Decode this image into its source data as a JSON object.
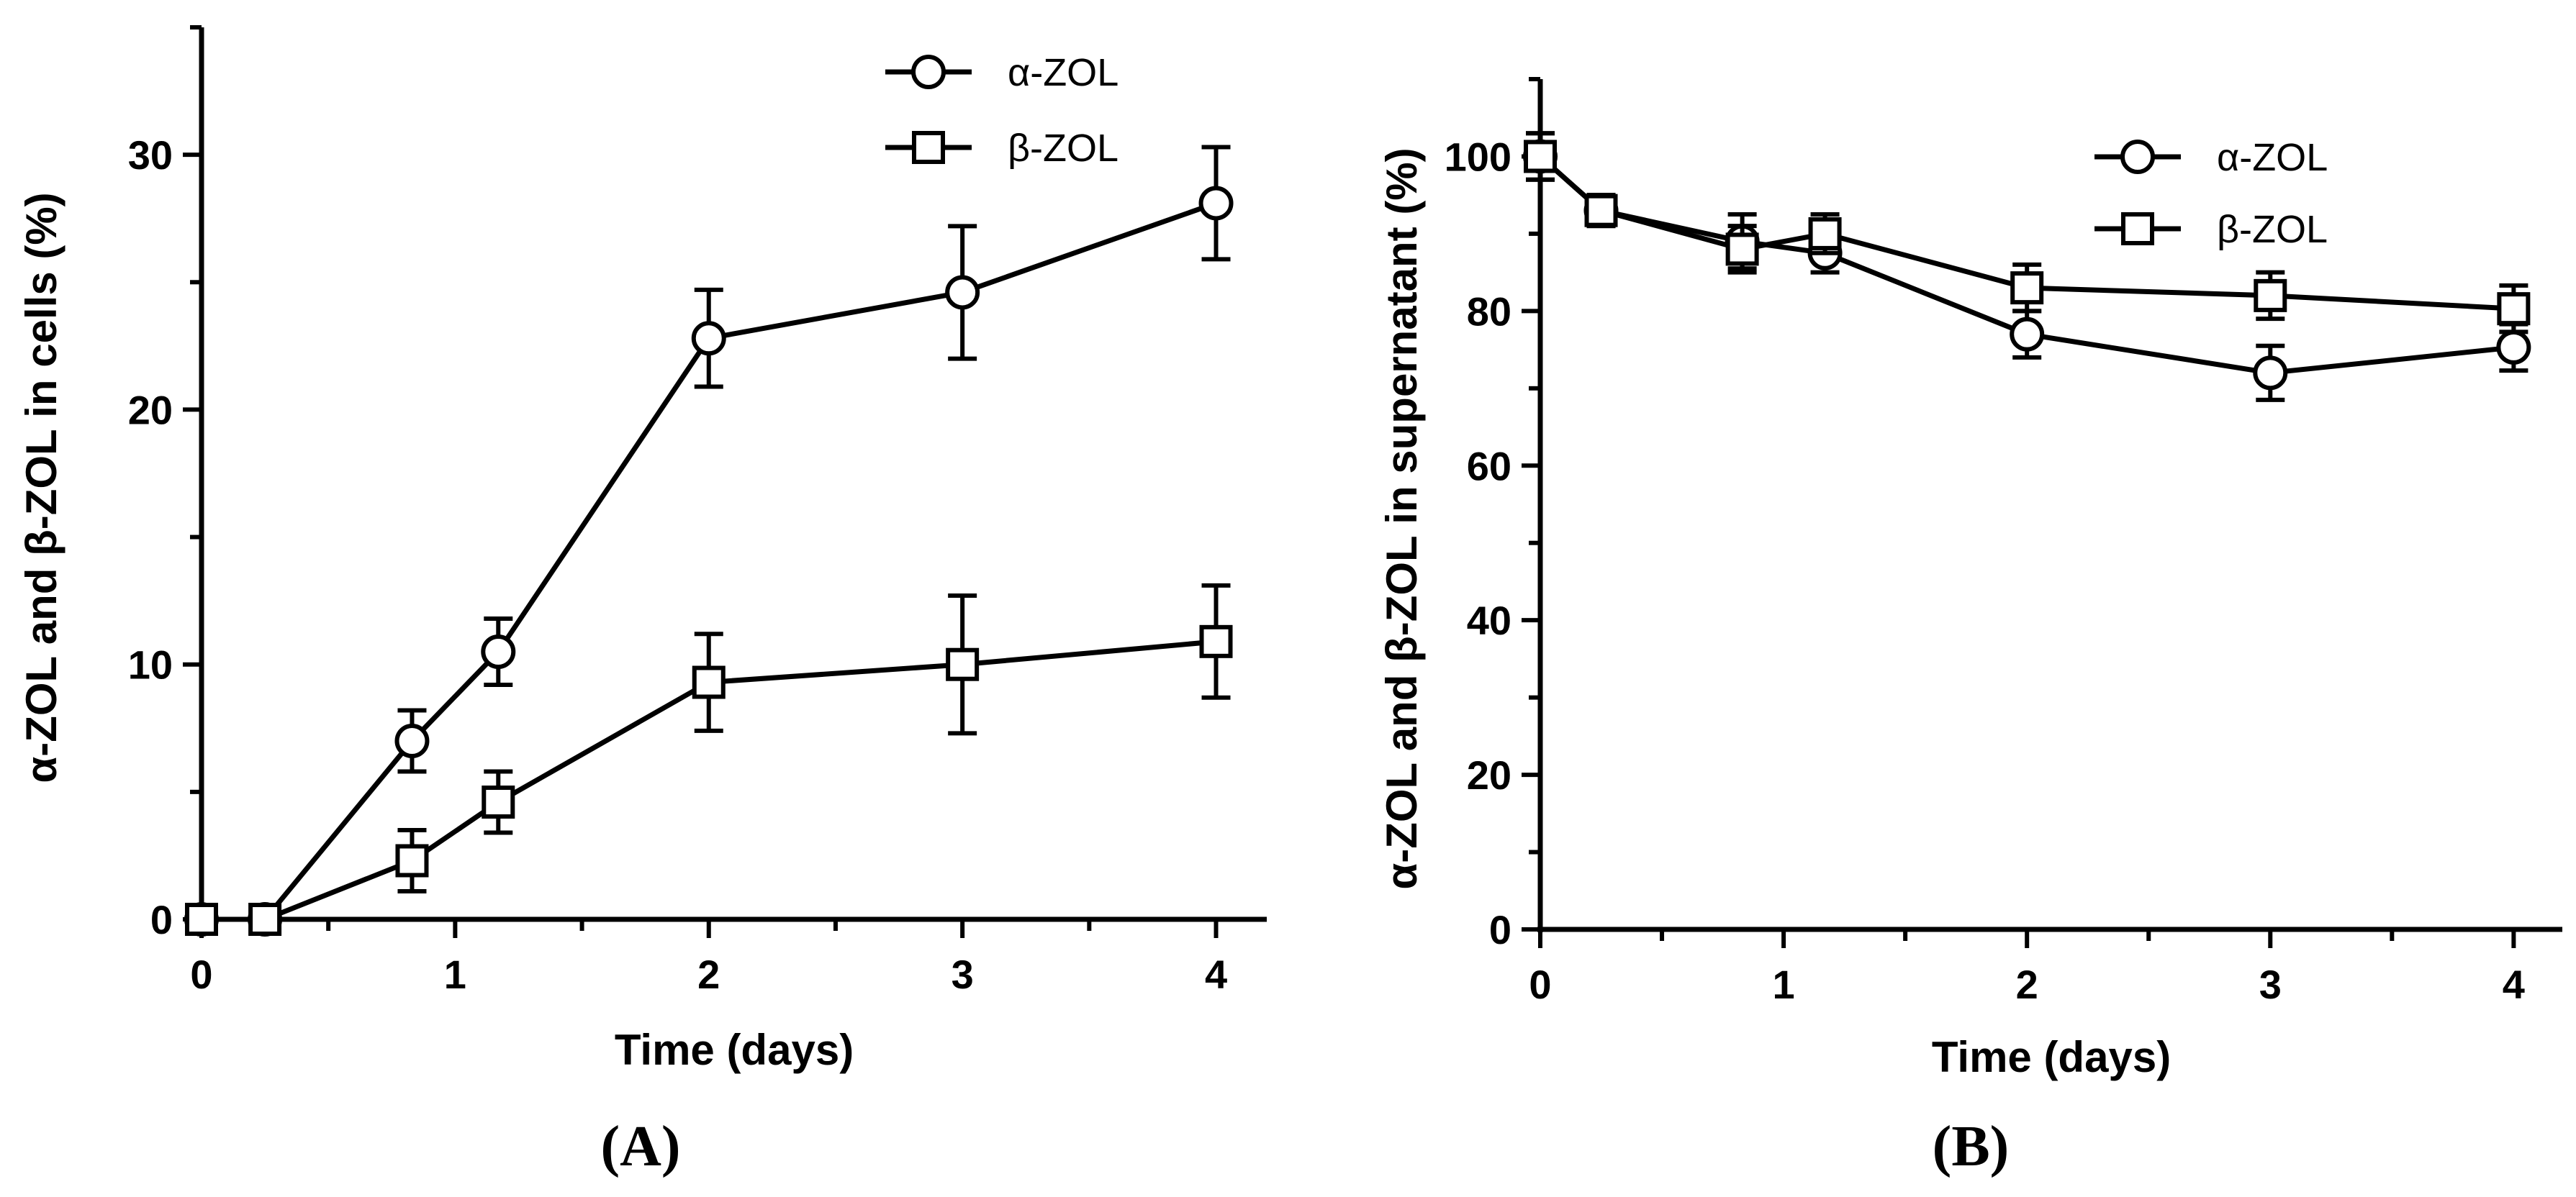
{
  "chart_data": [
    {
      "type": "line",
      "panel_label": "(A)",
      "xlabel": "Time (days)",
      "ylabel": "α-ZOL and β-ZOL in cells (%)",
      "xlim": [
        0,
        4.2
      ],
      "ylim": [
        0,
        35
      ],
      "xticks": [
        0,
        1,
        2,
        3,
        4
      ],
      "yticks": [
        0,
        10,
        20,
        30
      ],
      "xtick_labels": [
        "0",
        "1",
        "2",
        "3",
        "4"
      ],
      "ytick_labels": [
        "0",
        "10",
        "20",
        "30"
      ],
      "legend_position": "top-right",
      "series": [
        {
          "name": "α-ZOL",
          "marker": "circle",
          "x": [
            0,
            0.25,
            0.83,
            1.17,
            2,
            3,
            4
          ],
          "y": [
            0,
            0,
            7.0,
            10.5,
            22.8,
            24.6,
            28.1
          ],
          "err": [
            0,
            0,
            1.2,
            1.3,
            1.9,
            2.6,
            2.2
          ]
        },
        {
          "name": "β-ZOL",
          "marker": "square",
          "x": [
            0,
            0.25,
            0.83,
            1.17,
            2,
            3,
            4
          ],
          "y": [
            0,
            0,
            2.3,
            4.6,
            9.3,
            10.0,
            10.9
          ],
          "err": [
            0,
            0,
            1.2,
            1.2,
            1.9,
            2.7,
            2.2
          ]
        }
      ]
    },
    {
      "type": "line",
      "panel_label": "(B)",
      "xlabel": "Time (days)",
      "ylabel": "α-ZOL and β-ZOL in supernatant (%)",
      "xlim": [
        0,
        4.2
      ],
      "ylim": [
        0,
        110
      ],
      "xticks": [
        0,
        1,
        2,
        3,
        4
      ],
      "yticks": [
        0,
        20,
        40,
        60,
        80,
        100
      ],
      "xtick_labels": [
        "0",
        "1",
        "2",
        "3",
        "4"
      ],
      "ytick_labels": [
        "0",
        "20",
        "40",
        "60",
        "80",
        "100"
      ],
      "legend_position": "top-right",
      "series": [
        {
          "name": "α-ZOL",
          "marker": "circle",
          "x": [
            0,
            0.25,
            0.83,
            1.17,
            2,
            3,
            4
          ],
          "y": [
            100,
            93,
            89,
            87.5,
            77,
            72,
            75.3
          ],
          "err": [
            3,
            2,
            3.5,
            2.5,
            3,
            3.5,
            3
          ]
        },
        {
          "name": "β-ZOL",
          "marker": "square",
          "x": [
            0,
            0.25,
            0.83,
            1.17,
            2,
            3,
            4
          ],
          "y": [
            100,
            93,
            88,
            90,
            83,
            82,
            80.3
          ],
          "err": [
            3,
            2,
            3,
            2.5,
            3,
            3,
            3
          ]
        }
      ]
    }
  ]
}
